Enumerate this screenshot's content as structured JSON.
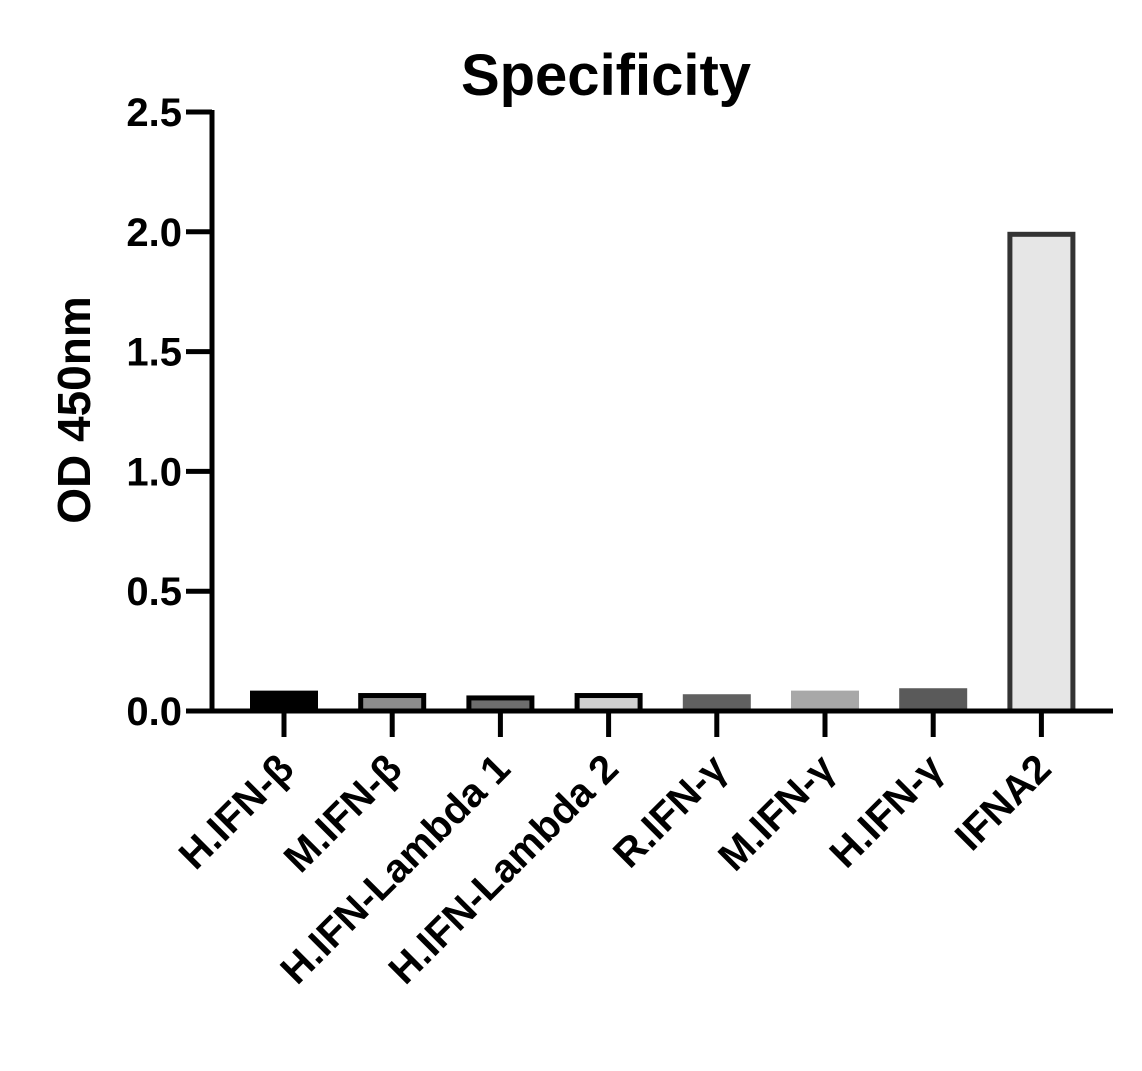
{
  "chart_data": {
    "type": "bar",
    "title": "Specificity",
    "xlabel": "",
    "ylabel": "OD 450nm",
    "ylim": [
      0,
      2.5
    ],
    "yticks": [
      "0.0",
      "0.5",
      "1.0",
      "1.5",
      "2.0",
      "2.5"
    ],
    "categories": [
      "H.IFN-β",
      "M.IFN-β",
      "H.IFN-Lambda 1",
      "H.IFN-Lambda 2",
      "R.IFN-γ",
      "M.IFN-γ",
      "H.IFN-γ",
      "IFNA2"
    ],
    "values": [
      0.085,
      0.075,
      0.065,
      0.075,
      0.07,
      0.085,
      0.095,
      2.0
    ],
    "bar_fill_colors": [
      "#000000",
      "#8c8c8c",
      "#6e6e6e",
      "#d0d0d0",
      "#606060",
      "#a8a8a8",
      "#5a5a5a",
      "#e6e6e6"
    ],
    "bar_outline_colors": [
      "#000000",
      "#000000",
      "#000000",
      "#000000",
      "#606060",
      "#a8a8a8",
      "#5a5a5a",
      "#333333"
    ],
    "grid": false,
    "legend": "none"
  }
}
